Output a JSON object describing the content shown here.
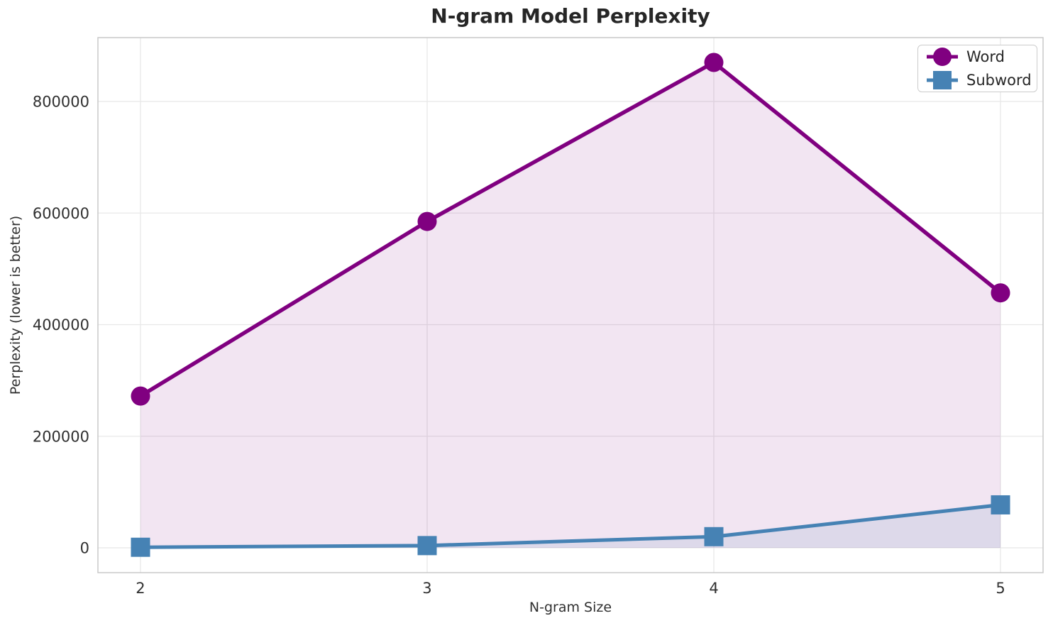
{
  "chart_data": {
    "type": "line",
    "title": "N-gram Model Perplexity",
    "xlabel": "N-gram Size",
    "ylabel": "Perplexity (lower is better)",
    "x": [
      2,
      3,
      4,
      5
    ],
    "xtick_labels": [
      "2",
      "3",
      "4",
      "5"
    ],
    "yticks": [
      0,
      200000,
      400000,
      600000,
      800000
    ],
    "ytick_labels": [
      "0",
      "200000",
      "400000",
      "600000",
      "800000"
    ],
    "xlim": [
      1.8515,
      5.1485
    ],
    "ylim": [
      -44500,
      914500
    ],
    "grid": true,
    "legend_position": "upper right",
    "series": [
      {
        "name": "Word",
        "color": "#800080",
        "marker": "circle",
        "marker_size": 27,
        "line_width": 5.5,
        "fill_to_zero": true,
        "fill_alpha": 0.1,
        "values": [
          272000,
          585000,
          870000,
          457000
        ]
      },
      {
        "name": "Subword",
        "color": "#4682B4",
        "marker": "square",
        "marker_size": 27,
        "line_width": 5,
        "fill_to_zero": true,
        "fill_alpha": 0.12,
        "values": [
          1000,
          4000,
          20000,
          77000
        ]
      }
    ],
    "colors": {
      "grid": "#e8e8e8",
      "spine": "#c9c9c9",
      "text": "#303030",
      "background": "#ffffff"
    }
  }
}
